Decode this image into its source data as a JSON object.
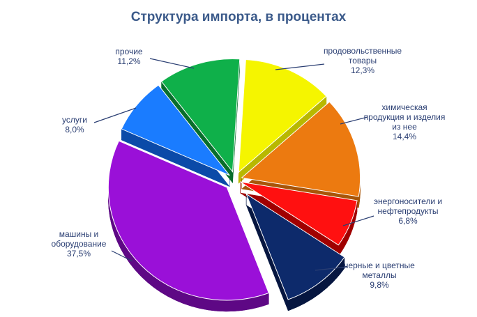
{
  "chart_data": {
    "type": "pie",
    "title": "Структура импорта, в процентах",
    "slices": [
      {
        "label": [
          "продовольственные",
          "товары"
        ],
        "value": 12.3,
        "value_text": "12,3%",
        "color": "#f5f500",
        "side": "#b8b800"
      },
      {
        "label": [
          "химическая",
          "продукция и изделия",
          "из нее"
        ],
        "value": 14.4,
        "value_text": "14,4%",
        "color": "#ec7a10",
        "side": "#a85508"
      },
      {
        "label": [
          "энергоносители и",
          "нефтепродукты"
        ],
        "value": 6.8,
        "value_text": "6,8%",
        "color": "#ff1010",
        "side": "#a00000"
      },
      {
        "label": [
          "черные и цветные",
          "металлы"
        ],
        "value": 9.8,
        "value_text": "9,8%",
        "color": "#0d2a6b",
        "side": "#061640"
      },
      {
        "label": [
          "машины и",
          "оборудование"
        ],
        "value": 37.5,
        "value_text": "37,5%",
        "color": "#9a10d8",
        "side": "#5e0885"
      },
      {
        "label": [
          "услуги"
        ],
        "value": 8.0,
        "value_text": "8,0%",
        "color": "#1a7cff",
        "side": "#0b4aa8"
      },
      {
        "label": [
          "прочие"
        ],
        "value": 11.2,
        "value_text": "11,2%",
        "color": "#0fb04a",
        "side": "#086e2c"
      }
    ]
  }
}
